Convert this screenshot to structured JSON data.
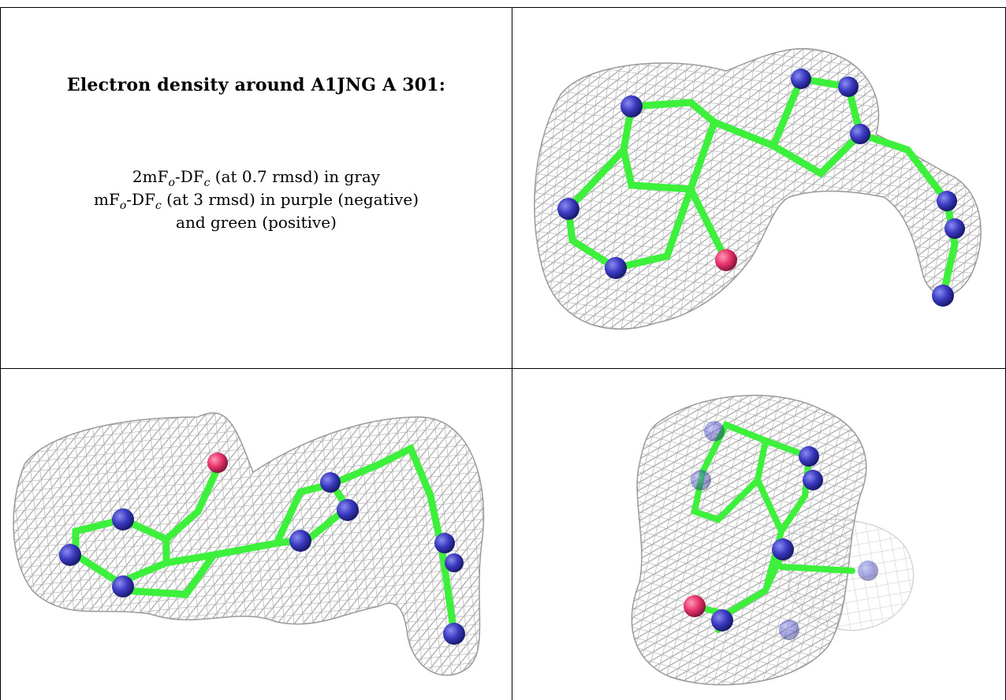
{
  "panel": {
    "title": "Electron density around A1JNG A 301:",
    "line1": {
      "a": "2mF",
      "b": "o",
      "c": "-DF",
      "d": "c",
      "e": " (at 0.7 rmsd) in gray"
    },
    "line2": {
      "a": "mF",
      "b": "o",
      "c": "-DF",
      "d": "c",
      "e": " (at 3 rmsd) in purple (negative)"
    },
    "line3": "and green (positive)"
  },
  "colors": {
    "mesh": "#a9a9a9",
    "bond": "#3cf03c",
    "nitrogen": "#3a3ac2",
    "oxygen": "#e8336a"
  },
  "views": {
    "view1": "ligand-view-1",
    "view2": "ligand-view-2",
    "view3": "ligand-view-3"
  }
}
